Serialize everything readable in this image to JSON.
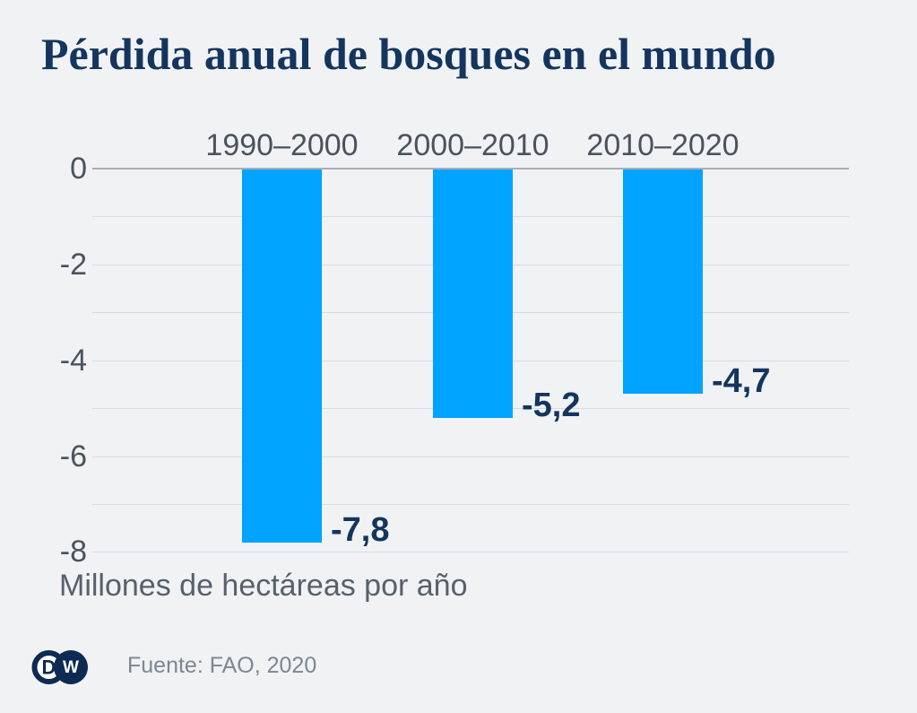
{
  "page": {
    "title": "Pérdida anual de bosques en el mundo",
    "unit_label": "Millones de hectáreas por año",
    "source": "Fuente: FAO, 2020",
    "logo_d": "D",
    "logo_w": "W"
  },
  "chart_data": {
    "type": "bar",
    "title": "Pérdida anual de bosques en el mundo",
    "categories": [
      "1990–2000",
      "2000–2010",
      "2010–2020"
    ],
    "values": [
      -7.8,
      -5.2,
      -4.7
    ],
    "value_labels": [
      "-7,8",
      "-5,2",
      "-4,7"
    ],
    "xlabel": "",
    "ylabel": "Millones de hectáreas por año",
    "ylim": [
      -8,
      0
    ],
    "yticks": [
      0,
      -2,
      -4,
      -6,
      -8
    ],
    "ytick_labels": [
      "0",
      "-2",
      "-4",
      "-6",
      "-8"
    ],
    "grid": true,
    "gridline_step": 1,
    "legend": false,
    "category_label_position": "above-zero-line",
    "value_label_position": "right-of-bar-bottom",
    "source": "Fuente: FAO, 2020",
    "bar_color": "#00a3ff"
  },
  "theme": {
    "colors": {
      "background": "#f0f2f4",
      "title_text": "#14355e",
      "axis_text": "#4a535d",
      "value_text": "#14355e",
      "unit_text": "#57616b",
      "source_text": "#7d8790",
      "gridline": "#d9dcdf",
      "zero_line": "#a9aeb4",
      "bar": "#00a3ff",
      "logo_navy": "#0d2a52",
      "logo_white": "#ffffff"
    }
  }
}
